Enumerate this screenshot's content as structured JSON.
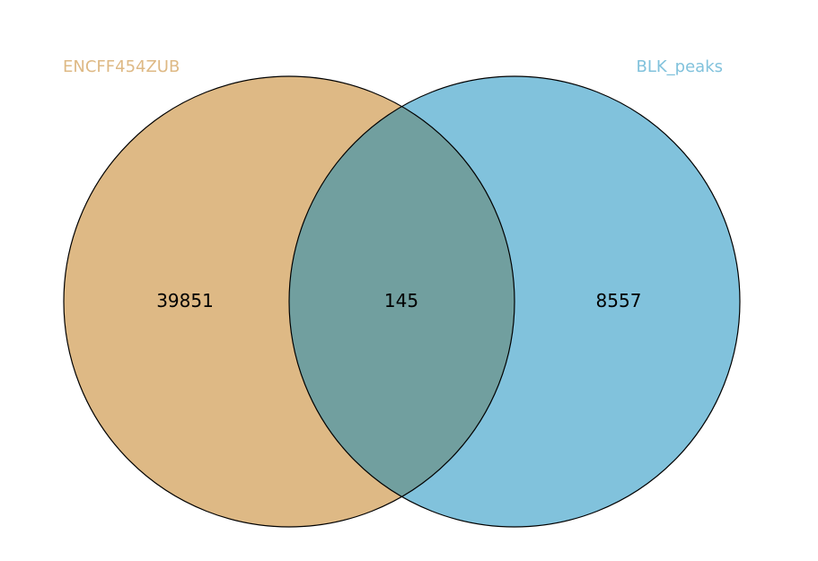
{
  "venn": {
    "sets": [
      {
        "name": "ENCFF454ZUB",
        "color": "#deb985"
      },
      {
        "name": "BLK_peaks",
        "color": "#81c2dc"
      }
    ],
    "overlap_color": "#719f9f",
    "counts": {
      "left_only": "39851",
      "intersection": "145",
      "right_only": "8557"
    }
  }
}
